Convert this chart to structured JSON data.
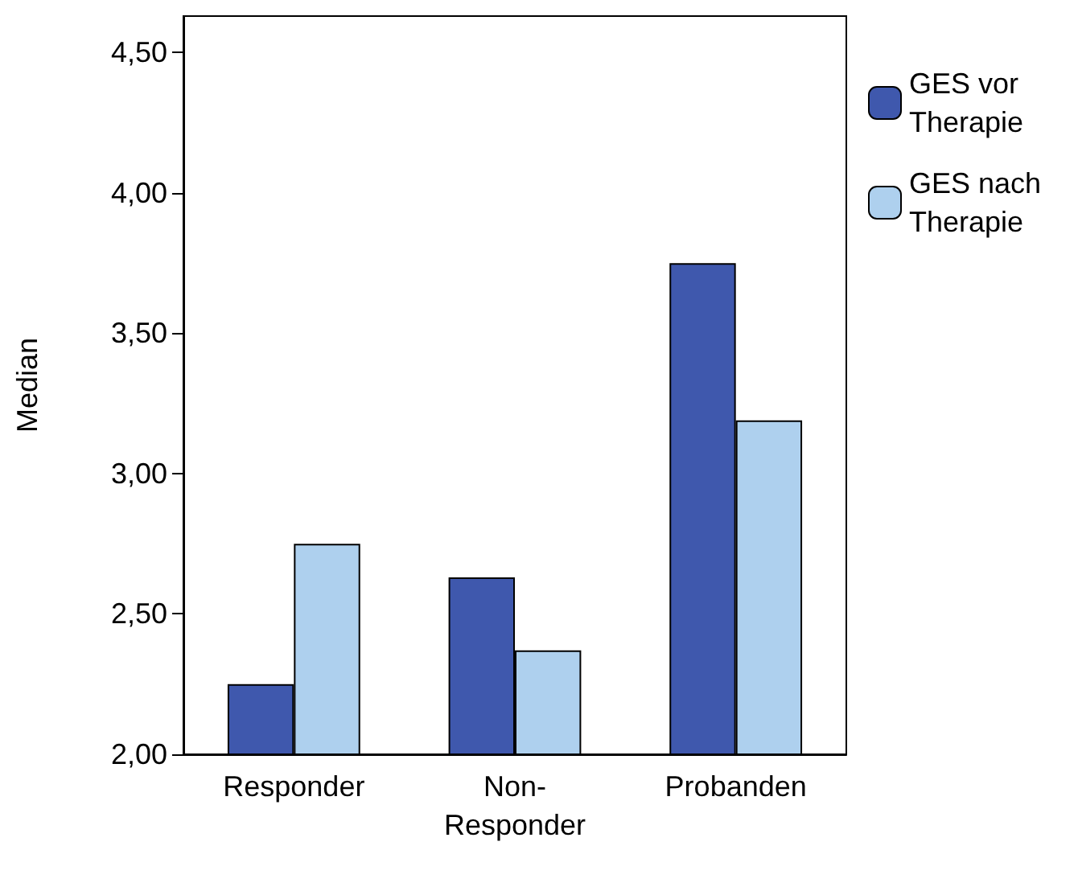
{
  "chart_data": {
    "type": "bar",
    "ylabel": "Median",
    "categories": [
      "Responder",
      "Non-Responder",
      "Probanden"
    ],
    "series": [
      {
        "name": "GES vor Therapie",
        "color": "#3f58ad",
        "values": [
          2.25,
          2.63,
          3.75
        ]
      },
      {
        "name": "GES nach Therapie",
        "color": "#aed0ee",
        "values": [
          2.75,
          2.37,
          3.19
        ]
      }
    ],
    "ylim": [
      2,
      4.63
    ],
    "yticks": [
      {
        "value": 2,
        "label": "2,00"
      },
      {
        "value": 2.5,
        "label": "2,50"
      },
      {
        "value": 3,
        "label": "3,00"
      },
      {
        "value": 3.5,
        "label": "3,50"
      },
      {
        "value": 4,
        "label": "4,00"
      },
      {
        "value": 4.5,
        "label": "4,50"
      }
    ],
    "grid": false,
    "legend": "right"
  }
}
